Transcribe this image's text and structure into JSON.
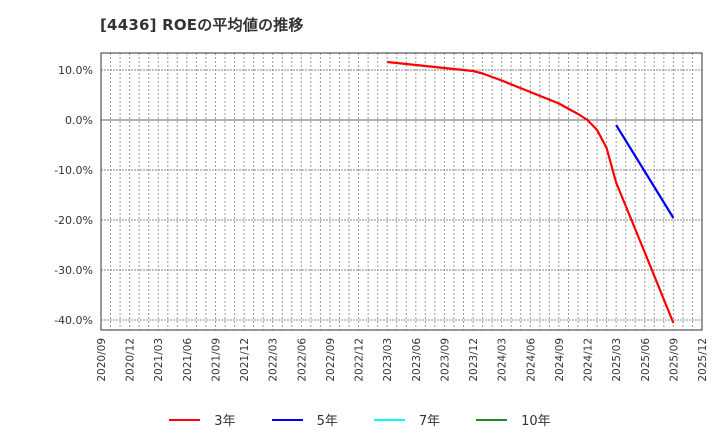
{
  "title": "[4436]  ROEの平均値の推移",
  "chart_data": {
    "type": "line",
    "title": "[4436]  ROEの平均値の推移",
    "xlabel": "",
    "ylabel": "",
    "ylim": [
      -42,
      13.5
    ],
    "grid": true,
    "legend_position": "bottom",
    "y_ticks": [
      "10.0%",
      "0.0%",
      "-10.0%",
      "-20.0%",
      "-30.0%",
      "-40.0%"
    ],
    "y_tick_values": [
      10,
      0,
      -10,
      -20,
      -30,
      -40
    ],
    "categories": [
      "2020/09",
      "2020/12",
      "2021/03",
      "2021/06",
      "2021/09",
      "2021/12",
      "2022/03",
      "2022/06",
      "2022/09",
      "2022/12",
      "2023/03",
      "2023/06",
      "2023/09",
      "2023/12",
      "2024/03",
      "2024/06",
      "2024/09",
      "2024/12",
      "2025/03",
      "2025/06",
      "2025/09",
      "2025/12"
    ],
    "series": [
      {
        "name": "3年",
        "color": "#ff0000",
        "values": [
          null,
          null,
          null,
          null,
          null,
          null,
          null,
          null,
          null,
          null,
          11.6,
          11.0,
          10.4,
          9.8,
          7.9,
          5.6,
          3.3,
          0.0,
          -12.5,
          -26.5,
          -40.6,
          null
        ]
      },
      {
        "name": "5年",
        "color": "#0000ff",
        "values": [
          null,
          null,
          null,
          null,
          null,
          null,
          null,
          null,
          null,
          null,
          null,
          null,
          null,
          null,
          null,
          null,
          null,
          null,
          -1.0,
          -10.3,
          -19.6,
          null
        ]
      },
      {
        "name": "7年",
        "color": "#00ffff",
        "values": []
      },
      {
        "name": "10年",
        "color": "#228b22",
        "values": []
      }
    ],
    "detail_points_3yr": [
      {
        "x": "2023/03",
        "y": 11.6
      },
      {
        "x": "2023/06",
        "y": 11.0
      },
      {
        "x": "2023/09",
        "y": 10.4
      },
      {
        "x": "2023/12",
        "y": 9.8
      },
      {
        "x": "2024/01",
        "y": 9.3
      },
      {
        "x": "2024/03",
        "y": 7.9
      },
      {
        "x": "2024/06",
        "y": 5.6
      },
      {
        "x": "2024/09",
        "y": 3.3
      },
      {
        "x": "2024/11",
        "y": 1.2
      },
      {
        "x": "2024/12",
        "y": 0.0
      },
      {
        "x": "2025/01",
        "y": -2.0
      },
      {
        "x": "2025/02",
        "y": -5.6
      },
      {
        "x": "2025/03",
        "y": -12.5
      },
      {
        "x": "2025/06",
        "y": -26.5
      },
      {
        "x": "2025/09",
        "y": -40.6
      }
    ]
  },
  "legend": [
    {
      "label": "3年",
      "color": "#ff0000"
    },
    {
      "label": "5年",
      "color": "#0000ff"
    },
    {
      "label": "7年",
      "color": "#00ffff"
    },
    {
      "label": "10年",
      "color": "#228b22"
    }
  ]
}
